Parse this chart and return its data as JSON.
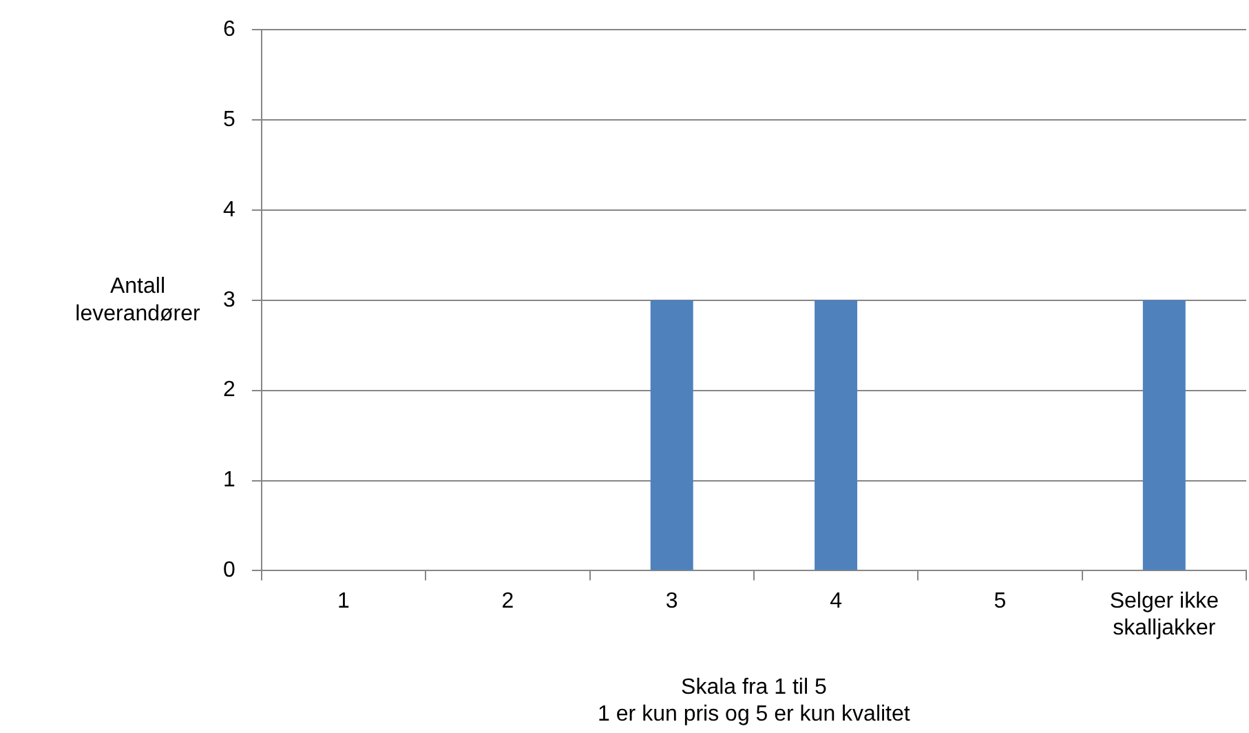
{
  "chart_data": {
    "type": "bar",
    "xlabel": "Skala fra 1 til 5\n1 er kun pris og 5 er kun kvalitet",
    "ylabel": "Antall leverandører",
    "categories": [
      "1",
      "2",
      "3",
      "4",
      "5",
      "Selger ikke skalljakker"
    ],
    "values": [
      0,
      0,
      3,
      3,
      0,
      3
    ],
    "color": "#4f81bd",
    "ylim": [
      0,
      6
    ],
    "yticks": [
      0,
      1,
      2,
      3,
      4,
      5,
      6
    ],
    "grid": "y",
    "legend": false
  }
}
